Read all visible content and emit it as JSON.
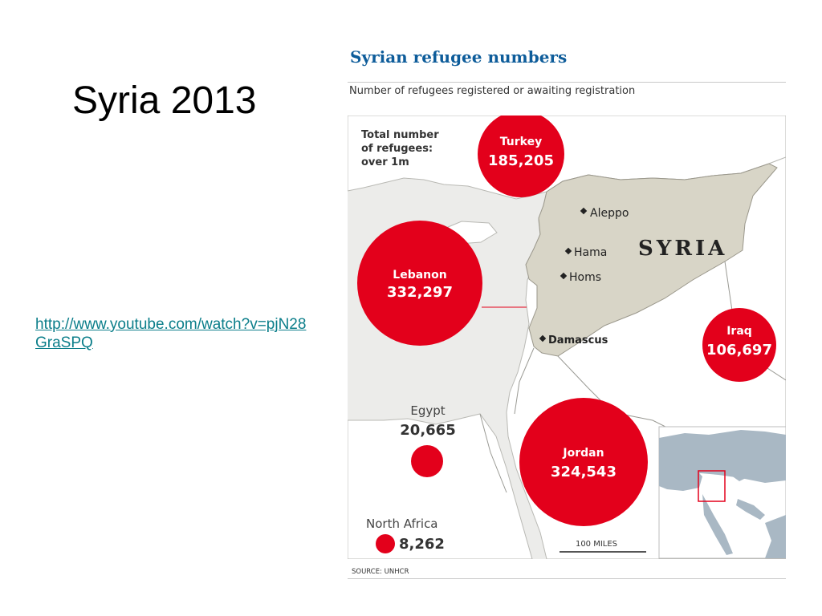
{
  "slide": {
    "title": "Syria 2013",
    "link": "http://www.youtube.com/watch?v=pjN28GraSPQ"
  },
  "infographic": {
    "title": "Syrian refugee numbers",
    "subtitle": "Number of refugees registered or awaiting registration",
    "total": [
      "Total number",
      "of refugees:",
      "over 1m"
    ],
    "source": "SOURCE: UNHCR",
    "scale_label": "100 MILES",
    "country_label": "SYRIA",
    "cities": [
      "Aleppo",
      "Hama",
      "Homs",
      "Damascus"
    ],
    "regions": {
      "turkey": {
        "name": "Turkey",
        "count": "185,205"
      },
      "lebanon": {
        "name": "Lebanon",
        "count": "332,297"
      },
      "iraq": {
        "name": "Iraq",
        "count": "106,697"
      },
      "jordan": {
        "name": "Jordan",
        "count": "324,543"
      },
      "egypt": {
        "name": "Egypt",
        "count": "20,665"
      },
      "north_africa": {
        "name": "North Africa",
        "count": "8,262"
      }
    },
    "colors": {
      "circle": "#e3001b",
      "sea": "#ececea",
      "land": "#ffffff",
      "syria": "#d8d5c7",
      "title": "#0d5c9a",
      "inset_water": "#a9b8c4"
    }
  }
}
